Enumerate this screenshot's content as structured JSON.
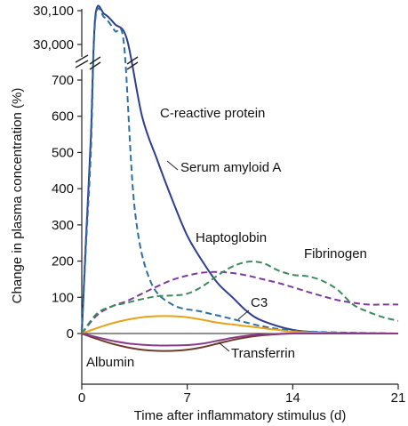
{
  "chart_data": {
    "type": "line",
    "xlabel": "Time after inflammatory stimulus (d)",
    "ylabel": "Change in plasma concentration (%)",
    "xlim": [
      0,
      21
    ],
    "xticks": [
      0,
      7,
      14,
      21
    ],
    "xtick_labels": [
      "0",
      "7",
      "14",
      "21"
    ],
    "ylim": [
      -70,
      730
    ],
    "yticks": [
      0,
      100,
      200,
      300,
      400,
      500,
      600,
      700
    ],
    "ytick_labels": [
      "0",
      "100",
      "200",
      "300",
      "400",
      "500",
      "600",
      "700"
    ],
    "upper_ticks": [
      30000,
      30100
    ],
    "upper_tick_labels": [
      "30,000",
      "30,100"
    ],
    "axis_break": true,
    "grid": false,
    "legend": "inline labels",
    "series": [
      {
        "name": "C-reactive protein",
        "color": "#2f3d8f",
        "dash": "solid",
        "x": [
          0,
          0.3,
          0.6,
          0.9,
          1.5,
          2.2,
          3,
          4,
          5,
          6,
          7,
          8,
          9,
          10,
          11,
          12,
          14,
          16,
          18,
          21
        ],
        "y": [
          0,
          280,
          540,
          30085,
          30090,
          30060,
          30015,
          600,
          480,
          370,
          270,
          200,
          140,
          100,
          60,
          35,
          10,
          3,
          1,
          0
        ]
      },
      {
        "name": "Serum amyloid A",
        "color": "#2f6f9f",
        "dash": "dashed",
        "x": [
          0,
          0.3,
          0.6,
          0.9,
          1.5,
          2.2,
          2.8,
          3.5,
          4.5,
          6,
          8,
          10,
          12,
          14,
          17,
          21
        ],
        "y": [
          0,
          260,
          500,
          30075,
          30080,
          30040,
          30000,
          350,
          150,
          80,
          60,
          40,
          20,
          8,
          3,
          0
        ]
      },
      {
        "name": "Haptoglobin",
        "color": "#7e3c9a",
        "dash": "dashed",
        "x": [
          0,
          1,
          2,
          3,
          4,
          5,
          6,
          7,
          8,
          9,
          10,
          11,
          12,
          13,
          14,
          15,
          16,
          17,
          18,
          19,
          20,
          21
        ],
        "y": [
          0,
          50,
          75,
          90,
          110,
          130,
          148,
          160,
          168,
          170,
          167,
          160,
          150,
          140,
          128,
          115,
          103,
          92,
          85,
          80,
          80,
          80
        ]
      },
      {
        "name": "Fibrinogen",
        "color": "#3d8a5a",
        "dash": "dashed",
        "x": [
          0,
          1,
          2,
          3,
          4,
          5,
          6,
          7,
          8,
          9,
          10,
          11,
          12,
          13,
          14,
          15,
          16,
          17,
          18,
          19,
          20,
          21
        ],
        "y": [
          0,
          55,
          75,
          85,
          95,
          103,
          105,
          110,
          130,
          160,
          185,
          198,
          195,
          175,
          162,
          158,
          145,
          120,
          80,
          60,
          45,
          35
        ]
      },
      {
        "name": "C3",
        "color": "#e6a21a",
        "dash": "solid",
        "x": [
          0,
          1,
          2,
          3,
          4,
          5,
          6,
          7,
          8,
          9,
          10,
          11,
          12,
          13,
          14,
          16,
          18,
          21
        ],
        "y": [
          0,
          15,
          28,
          38,
          45,
          48,
          48,
          45,
          38,
          30,
          25,
          20,
          15,
          10,
          5,
          2,
          0,
          0
        ]
      },
      {
        "name": "Albumin",
        "color": "#6e3a2a",
        "dash": "solid",
        "x": [
          0,
          1,
          2,
          3,
          4,
          5,
          6,
          7,
          8,
          9,
          10,
          11,
          12,
          13,
          14,
          16,
          18,
          21
        ],
        "y": [
          0,
          -15,
          -28,
          -38,
          -45,
          -48,
          -48,
          -45,
          -38,
          -28,
          -18,
          -10,
          -5,
          -2,
          0,
          0,
          0,
          0
        ]
      },
      {
        "name": "Transferrin",
        "color": "#8a3c8a",
        "dash": "solid",
        "x": [
          0,
          1,
          2,
          3,
          4,
          5,
          6,
          7,
          8,
          9,
          10,
          11,
          12,
          13,
          14,
          16,
          18,
          21
        ],
        "y": [
          0,
          -10,
          -20,
          -27,
          -31,
          -33,
          -33,
          -32,
          -28,
          -20,
          -12,
          -6,
          -3,
          -1,
          0,
          0,
          0,
          0
        ]
      }
    ],
    "annotations": [
      {
        "text": "C-reactive protein",
        "series": "C-reactive protein"
      },
      {
        "text": "Serum amyloid A",
        "series": "Serum amyloid A"
      },
      {
        "text": "Haptoglobin",
        "series": "Haptoglobin"
      },
      {
        "text": "Fibrinogen",
        "series": "Fibrinogen"
      },
      {
        "text": "C3",
        "series": "C3"
      },
      {
        "text": "Transferrin",
        "series": "Transferrin"
      },
      {
        "text": "Albumin",
        "series": "Albumin"
      }
    ]
  }
}
